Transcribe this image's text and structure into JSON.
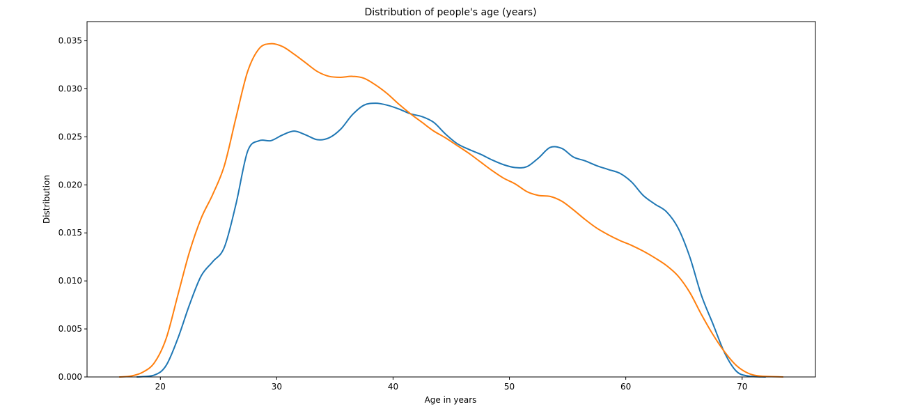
{
  "chart_data": {
    "type": "line",
    "title": "Distribution of people's age (years)",
    "xlabel": "Age in years",
    "ylabel": "Distribution",
    "xlim": [
      13.7,
      76.3
    ],
    "ylim": [
      0,
      0.037
    ],
    "xticks": [
      {
        "value": 20,
        "label": "20"
      },
      {
        "value": 30,
        "label": "30"
      },
      {
        "value": 40,
        "label": "40"
      },
      {
        "value": 50,
        "label": "50"
      },
      {
        "value": 60,
        "label": "60"
      },
      {
        "value": 70,
        "label": "70"
      }
    ],
    "yticks": [
      {
        "value": 0,
        "label": "0.000"
      },
      {
        "value": 0.005,
        "label": "0.005"
      },
      {
        "value": 0.01,
        "label": "0.010"
      },
      {
        "value": 0.015,
        "label": "0.015"
      },
      {
        "value": 0.02,
        "label": "0.020"
      },
      {
        "value": 0.025,
        "label": "0.025"
      },
      {
        "value": 0.03,
        "label": "0.030"
      },
      {
        "value": 0.035,
        "label": "0.035"
      }
    ],
    "grid": false,
    "legend": "none",
    "series": [
      {
        "color": "#1f77b4",
        "x": [
          18,
          19.5,
          20.5,
          21.5,
          22.5,
          23.5,
          24.5,
          25.5,
          26.5,
          27.5,
          28.5,
          29.5,
          30.5,
          31.5,
          32.5,
          33.5,
          34.5,
          35.5,
          36.5,
          37.5,
          38.5,
          39.5,
          40.5,
          41.5,
          42.5,
          43.5,
          44.5,
          45.5,
          46.5,
          47.5,
          48.5,
          49.5,
          50.5,
          51.5,
          52.5,
          53.5,
          54.5,
          55.5,
          56.5,
          57.5,
          58.5,
          59.5,
          60.5,
          61.5,
          62.5,
          63.5,
          64.5,
          65.5,
          66.5,
          67.5,
          68.5,
          69.5,
          70.5,
          72
        ],
        "y": [
          0.0,
          0.0002,
          0.0012,
          0.004,
          0.0075,
          0.0105,
          0.012,
          0.0135,
          0.018,
          0.0235,
          0.0246,
          0.0246,
          0.0252,
          0.0256,
          0.0252,
          0.0247,
          0.0249,
          0.0258,
          0.0273,
          0.0283,
          0.0285,
          0.0283,
          0.0279,
          0.0274,
          0.0271,
          0.0265,
          0.0253,
          0.0243,
          0.0237,
          0.0232,
          0.0226,
          0.0221,
          0.0218,
          0.0219,
          0.0228,
          0.0239,
          0.0238,
          0.0229,
          0.0225,
          0.022,
          0.0216,
          0.0212,
          0.0203,
          0.0189,
          0.018,
          0.0172,
          0.0155,
          0.0125,
          0.0085,
          0.0055,
          0.0025,
          0.0006,
          0.0001,
          0.0
        ]
      },
      {
        "color": "#ff7f0e",
        "x": [
          16.5,
          17.5,
          18.5,
          19.5,
          20.5,
          21.5,
          22.5,
          23.5,
          24.5,
          25.5,
          26.5,
          27.5,
          28.5,
          29.5,
          30.5,
          31.5,
          32.5,
          33.5,
          34.5,
          35.5,
          36.5,
          37.5,
          38.5,
          39.5,
          40.5,
          41.5,
          42.5,
          43.5,
          44.5,
          45.5,
          46.5,
          47.5,
          48.5,
          49.5,
          50.5,
          51.5,
          52.5,
          53.5,
          54.5,
          55.5,
          56.5,
          57.5,
          58.5,
          59.5,
          60.5,
          61.5,
          62.5,
          63.5,
          64.5,
          65.5,
          66.5,
          67.5,
          68.5,
          69.5,
          70.5,
          71.5,
          73.5
        ],
        "y": [
          0.0,
          0.0001,
          0.0005,
          0.0015,
          0.004,
          0.0085,
          0.013,
          0.0165,
          0.019,
          0.022,
          0.027,
          0.0318,
          0.0342,
          0.0347,
          0.0344,
          0.0336,
          0.0327,
          0.0318,
          0.0313,
          0.0312,
          0.0313,
          0.0311,
          0.0304,
          0.0295,
          0.0284,
          0.0274,
          0.0265,
          0.0256,
          0.0249,
          0.0241,
          0.0233,
          0.0224,
          0.0215,
          0.0207,
          0.0201,
          0.0193,
          0.0189,
          0.0188,
          0.0183,
          0.0174,
          0.0164,
          0.0155,
          0.0148,
          0.0142,
          0.0137,
          0.0131,
          0.0124,
          0.0116,
          0.0105,
          0.0088,
          0.0065,
          0.0044,
          0.0026,
          0.0012,
          0.0004,
          0.0001,
          0.0
        ]
      }
    ]
  }
}
